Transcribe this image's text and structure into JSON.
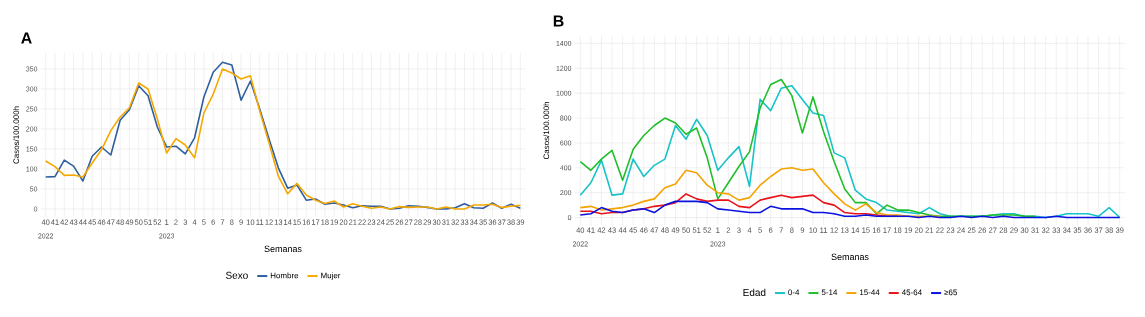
{
  "chart_data": [
    {
      "type": "line",
      "title": "A",
      "xlabel": "Semanas",
      "ylabel": "Casos/100.000h",
      "legend_title": "Sexo",
      "categories": [
        "40",
        "41",
        "42",
        "43",
        "44",
        "45",
        "46",
        "47",
        "48",
        "49",
        "50",
        "51",
        "52",
        "1",
        "2",
        "3",
        "4",
        "5",
        "6",
        "7",
        "8",
        "9",
        "10",
        "11",
        "12",
        "13",
        "14",
        "15",
        "16",
        "17",
        "18",
        "19",
        "20",
        "21",
        "22",
        "23",
        "24",
        "25",
        "26",
        "27",
        "28",
        "29",
        "30",
        "31",
        "32",
        "33",
        "34",
        "35",
        "36",
        "37",
        "38",
        "39"
      ],
      "series": [
        {
          "name": "Hombre",
          "color": "#2f5f9e",
          "values": [
            80,
            81,
            122,
            107,
            70,
            132,
            155,
            135,
            222,
            248,
            308,
            283,
            205,
            155,
            157,
            138,
            178,
            280,
            342,
            367,
            360,
            272,
            320,
            250,
            175,
            103,
            52,
            60,
            22,
            25,
            12,
            15,
            10,
            3,
            8,
            7,
            7,
            0,
            2,
            8,
            7,
            4,
            0,
            0,
            3,
            13,
            3,
            2,
            15,
            2,
            12,
            2
          ]
        },
        {
          "name": "Mujer",
          "color": "#f5a800",
          "values": [
            120,
            106,
            84,
            85,
            80,
            115,
            148,
            196,
            230,
            253,
            315,
            300,
            225,
            140,
            176,
            160,
            128,
            240,
            287,
            350,
            340,
            325,
            333,
            245,
            165,
            82,
            38,
            64,
            35,
            22,
            14,
            20,
            5,
            13,
            7,
            2,
            5,
            0,
            6,
            4,
            5,
            5,
            0,
            5,
            0,
            0,
            10,
            10,
            12,
            4,
            7,
            9
          ]
        }
      ],
      "ylim": [
        -20,
        390
      ],
      "yticks": [
        0,
        50,
        100,
        150,
        200,
        250,
        300,
        350
      ],
      "grid": true,
      "legend": "bottom",
      "annotations": [
        "2022",
        "2023"
      ]
    },
    {
      "type": "line",
      "title": "B",
      "xlabel": "Semanas",
      "ylabel": "Casos/100.000h",
      "legend_title": "Edad",
      "categories": [
        "40",
        "41",
        "42",
        "43",
        "44",
        "45",
        "46",
        "47",
        "48",
        "49",
        "50",
        "51",
        "52",
        "1",
        "2",
        "3",
        "4",
        "5",
        "6",
        "7",
        "8",
        "9",
        "10",
        "11",
        "12",
        "13",
        "14",
        "15",
        "16",
        "17",
        "18",
        "19",
        "20",
        "21",
        "22",
        "23",
        "24",
        "25",
        "26",
        "27",
        "28",
        "29",
        "30",
        "31",
        "32",
        "33",
        "34",
        "35",
        "36",
        "37",
        "38",
        "39"
      ],
      "series": [
        {
          "name": "0-4",
          "color": "#17c3c8",
          "values": [
            180,
            280,
            460,
            180,
            190,
            470,
            330,
            420,
            470,
            740,
            630,
            790,
            660,
            380,
            480,
            570,
            250,
            950,
            860,
            1040,
            1060,
            950,
            840,
            820,
            520,
            480,
            220,
            150,
            120,
            60,
            50,
            40,
            30,
            80,
            30,
            10,
            10,
            10,
            10,
            20,
            30,
            30,
            10,
            10,
            0,
            10,
            30,
            30,
            30,
            10,
            80,
            0
          ]
        },
        {
          "name": "5-14",
          "color": "#1fbf2a",
          "values": [
            450,
            380,
            470,
            540,
            300,
            550,
            660,
            740,
            800,
            760,
            670,
            720,
            480,
            150,
            280,
            410,
            530,
            880,
            1070,
            1110,
            980,
            680,
            970,
            690,
            450,
            230,
            120,
            120,
            30,
            100,
            60,
            60,
            40,
            20,
            10,
            10,
            10,
            10,
            10,
            20,
            20,
            20,
            10,
            10,
            null,
            null,
            null,
            null,
            null,
            null,
            null,
            null
          ]
        },
        {
          "name": "15-44",
          "color": "#f5a300",
          "values": [
            80,
            90,
            60,
            70,
            80,
            100,
            130,
            150,
            240,
            270,
            380,
            360,
            260,
            200,
            190,
            140,
            160,
            260,
            330,
            390,
            400,
            380,
            390,
            280,
            190,
            110,
            60,
            110,
            40,
            20,
            20,
            10,
            10,
            10,
            10,
            null,
            null,
            null,
            null,
            null,
            null,
            null,
            null,
            null,
            null,
            null,
            null,
            null,
            null,
            null,
            null,
            null
          ]
        },
        {
          "name": "45-64",
          "color": "#e8141a",
          "values": [
            50,
            50,
            30,
            40,
            40,
            60,
            70,
            90,
            100,
            120,
            190,
            150,
            130,
            140,
            140,
            90,
            80,
            140,
            160,
            180,
            160,
            170,
            180,
            120,
            100,
            40,
            30,
            30,
            20,
            10,
            10,
            null,
            null,
            null,
            null,
            null,
            null,
            null,
            null,
            null,
            null,
            null,
            null,
            null,
            null,
            null,
            null,
            null,
            null,
            null,
            null,
            null
          ]
        },
        {
          "name": "≥65",
          "color": "#0a12e0",
          "values": [
            20,
            30,
            80,
            50,
            40,
            60,
            70,
            40,
            100,
            130,
            130,
            130,
            120,
            70,
            60,
            50,
            40,
            40,
            90,
            70,
            70,
            70,
            40,
            40,
            30,
            10,
            10,
            20,
            10,
            10,
            10,
            10,
            0,
            10,
            0,
            0,
            10,
            0,
            10,
            0,
            10,
            0,
            0,
            0,
            0,
            10,
            0,
            0,
            0,
            0,
            0,
            0
          ]
        }
      ],
      "ylim": [
        -60,
        1460
      ],
      "yticks": [
        0,
        200,
        400,
        600,
        800,
        1000,
        1200,
        1400
      ],
      "grid": true,
      "legend": "bottom",
      "annotations": [
        "2022",
        "2023"
      ]
    }
  ]
}
